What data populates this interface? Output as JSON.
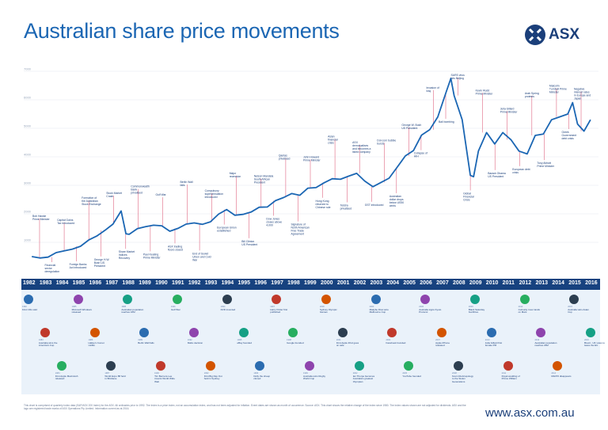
{
  "header": {
    "title": "Australian share price movements",
    "logo_text": "ASX"
  },
  "footer": {
    "note": "This chart is comprised of quarterly index data (S&P/ASX 200 Index) for the ASX. All ordinaries prior to 1992. The Index is a price index, not an accumulation index, and has not been adjusted for inflation. Event dates are shown as month of occurrence. Source: ASX. This chart shows the relative change of the index since 1980. The index values shown are not adjusted for dividends. ASX and the logo are registered trade marks of ASX Operations Pty Limited. Information current as at 2016.",
    "website": "www.asx.com.au"
  },
  "chart_data": {
    "type": "line",
    "title": "Australian share price movements",
    "xlabel": "",
    "ylabel": "",
    "ylim": [
      0,
      7000
    ],
    "yticks": [
      1000,
      2000,
      3000,
      4000,
      5000,
      6000,
      7000
    ],
    "grid": true,
    "years": [
      "1982",
      "1983",
      "1984",
      "1985",
      "1986",
      "1987",
      "1988",
      "1989",
      "1990",
      "1991",
      "1992",
      "1993",
      "1994",
      "1995",
      "1996",
      "1997",
      "1998",
      "1999",
      "2000",
      "2001",
      "2002",
      "2003",
      "2004",
      "2005",
      "2006",
      "2007",
      "2008",
      "2009",
      "2010",
      "2011",
      "2012",
      "2013",
      "2014",
      "2015",
      "2016"
    ],
    "series": [
      {
        "name": "",
        "x": [
          1982.0,
          1982.5,
          1983.0,
          1983.5,
          1984.0,
          1984.5,
          1985.0,
          1985.5,
          1986.0,
          1986.5,
          1987.0,
          1987.5,
          1987.8,
          1988.0,
          1988.5,
          1989.0,
          1989.5,
          1990.0,
          1990.5,
          1991.0,
          1991.5,
          1992.0,
          1992.5,
          1993.0,
          1993.5,
          1994.0,
          1994.5,
          1995.0,
          1995.5,
          1996.0,
          1996.5,
          1997.0,
          1997.5,
          1998.0,
          1998.5,
          1999.0,
          1999.5,
          2000.0,
          2000.5,
          2001.0,
          2001.5,
          2002.0,
          2002.5,
          2003.0,
          2003.5,
          2004.0,
          2004.5,
          2005.0,
          2005.5,
          2006.0,
          2006.5,
          2007.0,
          2007.5,
          2007.8,
          2008.0,
          2008.5,
          2009.0,
          2009.2,
          2009.5,
          2010.0,
          2010.5,
          2011.0,
          2011.5,
          2012.0,
          2012.5,
          2013.0,
          2013.5,
          2014.0,
          2014.5,
          2015.0,
          2015.3,
          2015.6,
          2016.0,
          2016.4
        ],
        "y": [
          500,
          450,
          480,
          640,
          700,
          760,
          860,
          1080,
          1220,
          1420,
          1640,
          2100,
          1300,
          1280,
          1480,
          1550,
          1600,
          1580,
          1390,
          1490,
          1640,
          1680,
          1630,
          1720,
          1990,
          2150,
          1950,
          1980,
          2060,
          2230,
          2240,
          2460,
          2570,
          2710,
          2650,
          2900,
          2920,
          3090,
          3230,
          3210,
          3320,
          3420,
          3150,
          2950,
          3100,
          3250,
          3640,
          4030,
          4220,
          4760,
          4950,
          5400,
          6250,
          6750,
          6150,
          5300,
          3350,
          3300,
          4200,
          4850,
          4450,
          4850,
          4600,
          4200,
          4100,
          4750,
          4800,
          5300,
          5400,
          5500,
          5900,
          5150,
          4900,
          5300
        ]
      }
    ],
    "annotations": [
      "Bob Hawke Prime Minister",
      "Financial sector deregulation",
      "Capital Gains Tax introduced",
      "Foreign Banks Act introduced",
      "Formation of the Australian Stock Exchange",
      "George H.W. Bush US President",
      "Stock Market Crash",
      "Share Market Indices Recovery",
      "Commonwealth Bank privatised",
      "Paul Keating Prime Minister",
      "Gulf War",
      "ASX trading floors closed",
      "Berlin Wall falls",
      "End of Soviet Union and Cold War",
      "Compulsory superannuation introduced",
      "European Union established",
      "Major recession",
      "Bill Clinton US President",
      "Nelson Mandela South African President",
      "Dow Jones closes above 4,000",
      "Qantas privatised",
      "Signature of North American Free Trade Agreement",
      "John Howard Prime Minister",
      "Hong Kong returned to Chinese rule",
      "Asian financial crisis",
      "Telstra privatised",
      "ASX demutualises and becomes a listed company",
      "GST introduced",
      "Dot-com bubble bursts",
      "Australian dollar drops below US50 cents",
      "George W. Bush US President",
      "Collapse of HIH",
      "Invasion of Iraq",
      "Bali bombing",
      "SARS virus hits Beijing",
      "Global Financial Crisis",
      "Kevin Rudd Prime Minister",
      "Barack Obama US President",
      "Julia Gillard Prime Minister",
      "European debt crisis",
      "Arab Spring protests",
      "Tony Abbott Prime Minister",
      "Malcolm Turnbull Prime Minister",
      "Greek Government debt crisis",
      "Negative interest rates in Europe and Japan"
    ]
  },
  "timeline_events": [
    {
      "year": "1982",
      "text": "First CDs sold"
    },
    {
      "year": "1983",
      "text": "Australia wins the America's Cup"
    },
    {
      "year": "1984",
      "text": "First Apple Macintosh released"
    },
    {
      "year": "1985",
      "text": "Microsoft Windows released"
    },
    {
      "year": "1986",
      "text": "Halley's Comet visible"
    },
    {
      "year": "1987",
      "text": "World Expo 88 held in Brisbane"
    },
    {
      "year": "1988",
      "text": "Australian population reaches 16M"
    },
    {
      "year": "1989",
      "text": "Berlin Wall falls"
    },
    {
      "year": "1990",
      "text": "Tim Berners-Lee invents World Wide Web"
    },
    {
      "year": "1991",
      "text": "Gulf War"
    },
    {
      "year": "1992",
      "text": "Mabo decision"
    },
    {
      "year": "1993",
      "text": "First Big Day Out held in Sydney"
    },
    {
      "year": "1994",
      "text": "DVD invented"
    },
    {
      "year": "1995",
      "text": "eBay founded"
    },
    {
      "year": "1996",
      "text": "Dolly the sheep cloned"
    },
    {
      "year": "1997",
      "text": "Harry Potter first published"
    },
    {
      "year": "1998",
      "text": "Google founded"
    },
    {
      "year": "1999",
      "text": "Australia wins Rugby World Cup"
    },
    {
      "year": "2000",
      "text": "Sydney Olympic Games"
    },
    {
      "year": "2001",
      "text": "First Apple iPod goes on sale"
    },
    {
      "year": "2002",
      "text": "Ian Thorpe becomes Australia's greatest Olympian"
    },
    {
      "year": "2003",
      "text": "Makybe Diva wins Melbourne Cup"
    },
    {
      "year": "2004",
      "text": "Facebook founded"
    },
    {
      "year": "2005",
      "text": "YouTube founded"
    },
    {
      "year": "2006",
      "text": "Australia signs Kyoto Protocol"
    },
    {
      "year": "2007",
      "text": "Apple iPhone released"
    },
    {
      "year": "2008",
      "text": "Kevin Rudd apology to the Stolen Generations"
    },
    {
      "year": "2009",
      "text": "Black Saturday bushfires"
    },
    {
      "year": "2010",
      "text": "Julia Gillard first female PM"
    },
    {
      "year": "2011",
      "text": "Royal wedding of Prince William"
    },
    {
      "year": "2012",
      "text": "Curiosity rover lands on Mars"
    },
    {
      "year": "2013",
      "text": "Australian population reaches 23M"
    },
    {
      "year": "2014",
      "text": "MH370 disappears"
    },
    {
      "year": "2015",
      "text": "Australia wins Asian Cup"
    },
    {
      "year": "2016",
      "text": "Brexit - UK votes to leave the EU"
    }
  ],
  "colors": {
    "line": "#1b66b3",
    "annotation": "#1b3f7a",
    "leader": "#d94a6a",
    "timeline": "#17427f",
    "band": "#eaf2fa"
  }
}
